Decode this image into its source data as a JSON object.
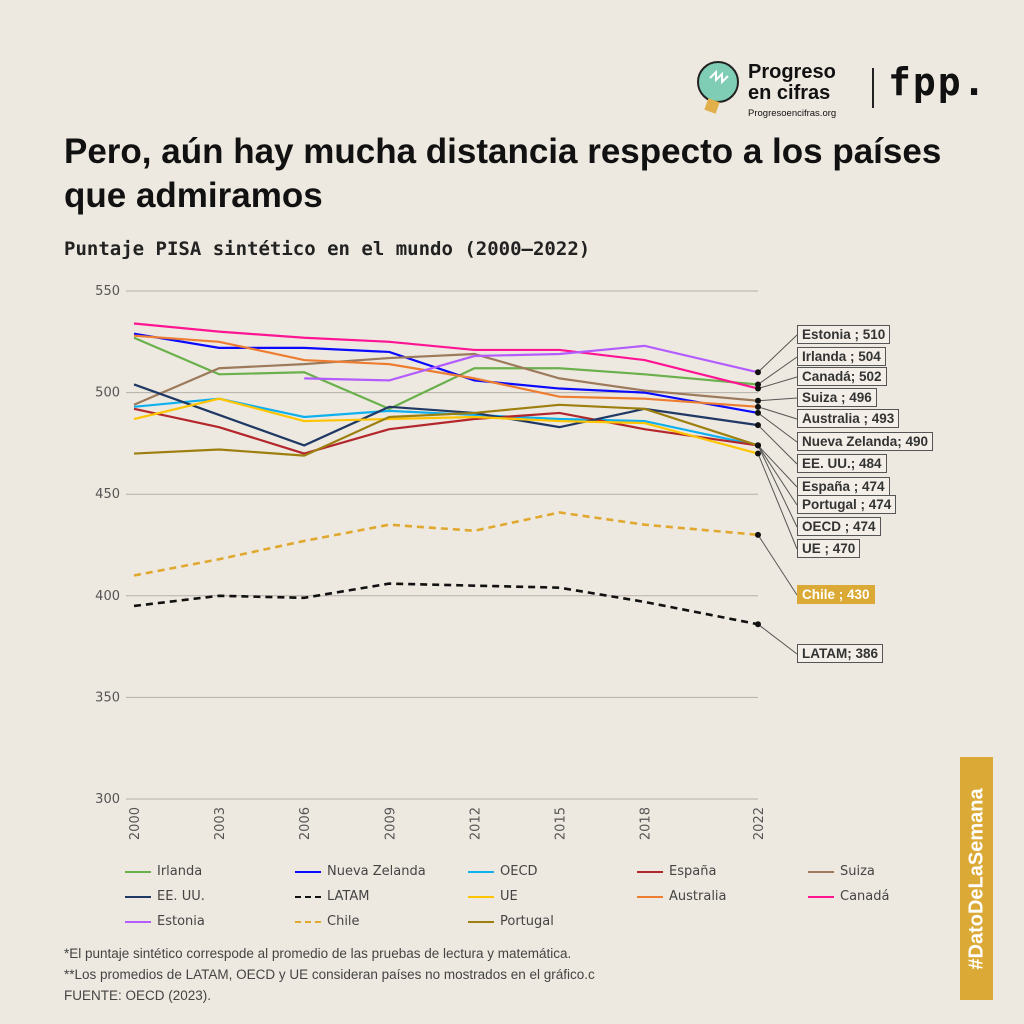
{
  "brand": {
    "name_line1": "Progreso",
    "name_line2": "en cifras",
    "url": "Progresoencifras.org",
    "partner": "fpp."
  },
  "title": "Pero, aún hay mucha distancia respecto a los países que admiramos",
  "notes": [
    "*El puntaje sintético correspode al promedio de las pruebas de lectura y matemática.",
    "**Los promedios de LATAM, OECD y UE consideran países no mostrados en el gráfico.c",
    "FUENTE: OECD (2023)."
  ],
  "banner": "#DatoDeLaSemana",
  "chart_data": {
    "type": "line",
    "title": "Puntaje PISA sintético en el mundo (2000–2022)",
    "xlabel": "",
    "ylabel": "",
    "x": [
      "2000",
      "2003",
      "2006",
      "2009",
      "2012",
      "2015",
      "2018",
      "2022"
    ],
    "ylim": [
      300,
      550
    ],
    "yticks": [
      "300",
      "350",
      "400",
      "450",
      "500",
      "550"
    ],
    "grid": true,
    "legend": "bottom",
    "series": [
      {
        "name": "Irlanda",
        "color": "#6ab04c",
        "values": [
          527,
          509,
          510,
          492,
          512,
          512,
          509,
          504
        ],
        "end_label": "Irlanda ; 504"
      },
      {
        "name": "Nueva Zelanda",
        "color": "#0a0aff",
        "values": [
          529,
          522,
          522,
          520,
          506,
          502,
          500,
          490
        ],
        "end_label": "Nueva Zelanda; 490"
      },
      {
        "name": "OECD",
        "color": "#10b0ee",
        "values": [
          493,
          497,
          488,
          491,
          489,
          487,
          486,
          474
        ],
        "end_label": "OECD ; 474"
      },
      {
        "name": "España",
        "color": "#b3262b",
        "values": [
          492,
          483,
          470,
          482,
          487,
          490,
          482,
          474
        ],
        "end_label": "España ; 474"
      },
      {
        "name": "Suiza",
        "color": "#9c7a5b",
        "values": [
          494,
          512,
          514,
          517,
          519,
          507,
          501,
          496
        ],
        "end_label": "Suiza ; 496"
      },
      {
        "name": "EE. UU.",
        "color": "#1f3864",
        "values": [
          504,
          489,
          474,
          493,
          490,
          483,
          492,
          484
        ],
        "end_label": "EE. UU.; 484"
      },
      {
        "name": "LATAM",
        "color": "#111111",
        "dash": true,
        "values": [
          395,
          400,
          399,
          406,
          405,
          404,
          397,
          386
        ],
        "end_label": "LATAM; 386"
      },
      {
        "name": "UE",
        "color": "#ffc400",
        "values": [
          487,
          497,
          486,
          487,
          488,
          486,
          485,
          470
        ],
        "end_label": "UE ; 470"
      },
      {
        "name": "Australia",
        "color": "#ed7d31",
        "values": [
          528,
          525,
          516,
          514,
          507,
          498,
          497,
          493
        ],
        "end_label": "Australia ; 493"
      },
      {
        "name": "Canadá",
        "color": "#ff1493",
        "values": [
          534,
          530,
          527,
          525,
          521,
          521,
          516,
          502
        ],
        "end_label": "Canadá; 502"
      },
      {
        "name": "Estonia",
        "color": "#b35cff",
        "values": [
          null,
          null,
          507,
          506,
          518,
          519,
          523,
          510
        ],
        "end_label": "Estonia ; 510"
      },
      {
        "name": "Chile",
        "color": "#e0a82e",
        "dash": true,
        "values": [
          410,
          418,
          427,
          435,
          432,
          441,
          435,
          430
        ],
        "end_label": "Chile ; 430"
      },
      {
        "name": "Portugal",
        "color": "#9c7f0f",
        "values": [
          470,
          472,
          469,
          488,
          490,
          494,
          492,
          474
        ],
        "end_label": "Portugal ; 474"
      }
    ]
  }
}
